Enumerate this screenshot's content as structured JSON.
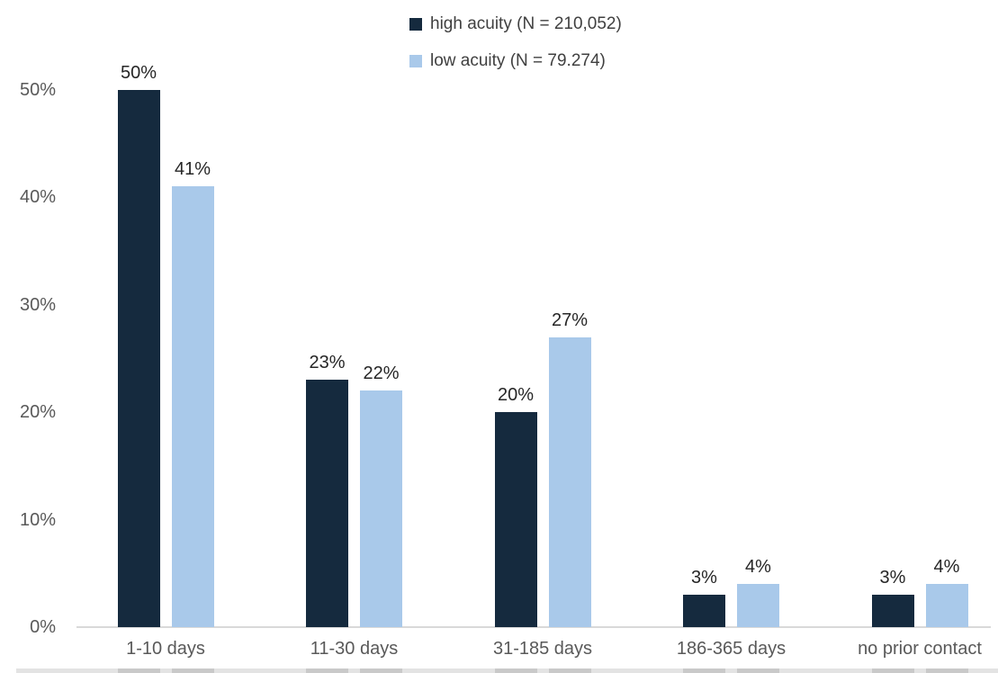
{
  "chart_data": {
    "type": "bar",
    "title": "",
    "xlabel": "",
    "ylabel": "",
    "categories": [
      "1-10 days",
      "11-30 days",
      "31-185 days",
      "186-365 days",
      "no prior contact"
    ],
    "series": [
      {
        "name": "high acuity (N = 210,052)",
        "color": "#152a3e",
        "values": [
          50,
          23,
          20,
          3,
          3
        ],
        "labels": [
          "50%",
          "23%",
          "20%",
          "3%",
          "3%"
        ]
      },
      {
        "name": "low acuity (N = 79.274)",
        "color": "#a9c9ea",
        "values": [
          41,
          22,
          27,
          4,
          4
        ],
        "labels": [
          "41%",
          "22%",
          "27%",
          "4%",
          "4%"
        ]
      }
    ],
    "yticks": [
      {
        "label": "0%",
        "value": 0
      },
      {
        "label": "10%",
        "value": 10
      },
      {
        "label": "20%",
        "value": 20
      },
      {
        "label": "30%",
        "value": 30
      },
      {
        "label": "40%",
        "value": 40
      },
      {
        "label": "50%",
        "value": 50
      }
    ],
    "ylim": [
      0,
      52
    ],
    "grid": false,
    "legend_position": "top-center",
    "value_labels": true
  },
  "colors": {
    "background": "#ffffff",
    "axis_text": "#595959",
    "value_label_text": "#262626",
    "legend_text": "#404040",
    "baseline": "#d9d9d9"
  }
}
